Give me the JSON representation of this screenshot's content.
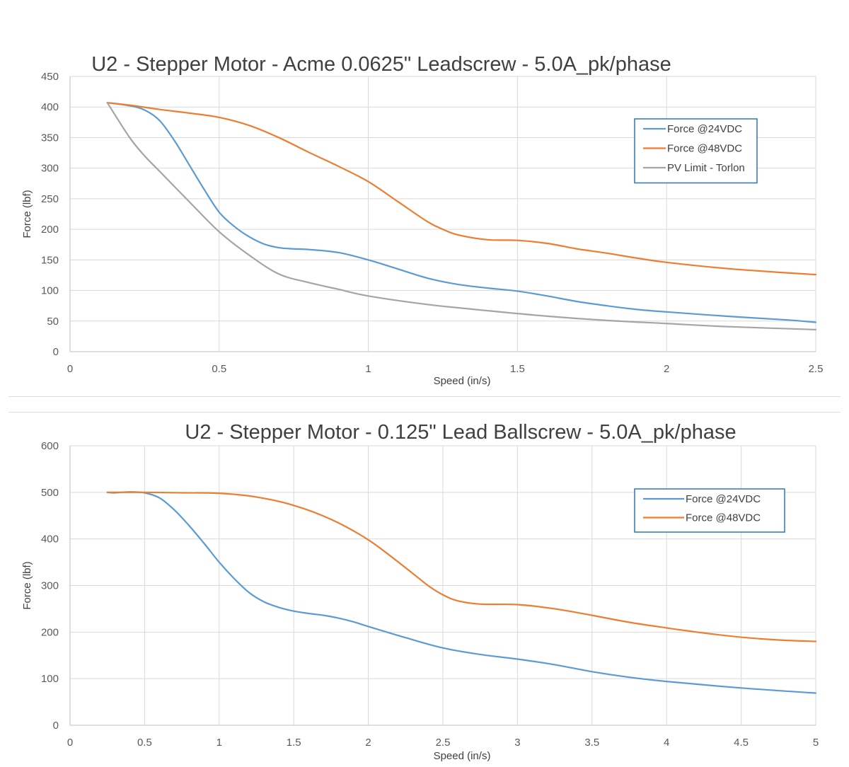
{
  "chart_data": [
    {
      "type": "line",
      "title": "U2 - Stepper Motor - Acme 0.0625\" Leadscrew - 5.0A_pk/phase",
      "xlabel": "Speed (in/s)",
      "ylabel": "Force (lbf)",
      "xlim": [
        0,
        2.5
      ],
      "ylim": [
        0,
        450
      ],
      "xticks": [
        "0",
        "0.5",
        "1",
        "1.5",
        "2",
        "2.5"
      ],
      "yticks": [
        "0",
        "50",
        "100",
        "150",
        "200",
        "250",
        "300",
        "350",
        "400",
        "450"
      ],
      "grid": true,
      "legend_position": "top-right",
      "series": [
        {
          "name": "Force @24VDC",
          "color": "#5b9bd5",
          "x": [
            0.125,
            0.2,
            0.25,
            0.3,
            0.35,
            0.4,
            0.45,
            0.5,
            0.55,
            0.6,
            0.65,
            0.7,
            0.75,
            0.8,
            0.9,
            1.0,
            1.1,
            1.2,
            1.3,
            1.4,
            1.5,
            1.6,
            1.7,
            1.8,
            1.9,
            2.0,
            2.2,
            2.4,
            2.5
          ],
          "y": [
            407,
            402,
            395,
            378,
            345,
            305,
            265,
            228,
            205,
            188,
            176,
            170,
            168,
            167,
            162,
            150,
            135,
            120,
            110,
            104,
            99,
            91,
            82,
            75,
            69,
            65,
            58,
            52,
            48
          ]
        },
        {
          "name": "Force @48VDC",
          "color": "#ed7d31",
          "x": [
            0.125,
            0.2,
            0.3,
            0.4,
            0.5,
            0.6,
            0.7,
            0.8,
            0.9,
            1.0,
            1.1,
            1.2,
            1.25,
            1.3,
            1.4,
            1.5,
            1.6,
            1.7,
            1.8,
            1.9,
            2.0,
            2.2,
            2.4,
            2.5
          ],
          "y": [
            407,
            403,
            396,
            390,
            383,
            370,
            350,
            326,
            303,
            278,
            245,
            212,
            200,
            191,
            183,
            182,
            177,
            168,
            161,
            153,
            146,
            136,
            129,
            126
          ]
        },
        {
          "name": "PV Limit - Torlon",
          "color": "#a5a5a5",
          "x": [
            0.125,
            0.2,
            0.25,
            0.3,
            0.4,
            0.5,
            0.6,
            0.7,
            0.8,
            0.9,
            1.0,
            1.2,
            1.4,
            1.6,
            1.8,
            2.0,
            2.2,
            2.5
          ],
          "y": [
            407,
            350,
            320,
            295,
            245,
            196,
            158,
            127,
            113,
            102,
            91,
            77,
            67,
            58,
            51,
            46,
            41,
            36
          ]
        }
      ]
    },
    {
      "type": "line",
      "title": "U2 - Stepper Motor - 0.125\" Lead Ballscrew - 5.0A_pk/phase",
      "xlabel": "Speed (in/s)",
      "ylabel": "Force (lbf)",
      "xlim": [
        0,
        5
      ],
      "ylim": [
        0,
        600
      ],
      "xticks": [
        "0",
        "0.5",
        "1",
        "1.5",
        "2",
        "2.5",
        "3",
        "3.5",
        "4",
        "4.5",
        "5"
      ],
      "yticks": [
        "0",
        "100",
        "200",
        "300",
        "400",
        "500",
        "600"
      ],
      "grid": true,
      "legend_position": "top-right",
      "series": [
        {
          "name": "Force @24VDC",
          "color": "#5b9bd5",
          "x": [
            0.25,
            0.3,
            0.4,
            0.5,
            0.6,
            0.7,
            0.8,
            0.9,
            1.0,
            1.1,
            1.2,
            1.3,
            1.4,
            1.5,
            1.6,
            1.7,
            1.8,
            1.9,
            2.0,
            2.25,
            2.5,
            2.75,
            3.0,
            3.25,
            3.5,
            3.75,
            4.0,
            4.5,
            5.0
          ],
          "y": [
            500,
            499,
            501,
            499,
            488,
            462,
            428,
            390,
            350,
            315,
            285,
            265,
            253,
            245,
            240,
            236,
            230,
            222,
            212,
            188,
            166,
            152,
            142,
            130,
            115,
            103,
            94,
            80,
            69
          ]
        },
        {
          "name": "Force @48VDC",
          "color": "#ed7d31",
          "x": [
            0.25,
            0.5,
            0.75,
            1.0,
            1.25,
            1.5,
            1.75,
            2.0,
            2.25,
            2.4,
            2.5,
            2.6,
            2.75,
            3.0,
            3.25,
            3.5,
            3.75,
            4.0,
            4.25,
            4.5,
            4.75,
            5.0
          ],
          "y": [
            500,
            500,
            499,
            498,
            490,
            472,
            442,
            398,
            338,
            300,
            280,
            267,
            260,
            259,
            250,
            236,
            221,
            209,
            198,
            189,
            183,
            180
          ]
        }
      ]
    }
  ]
}
